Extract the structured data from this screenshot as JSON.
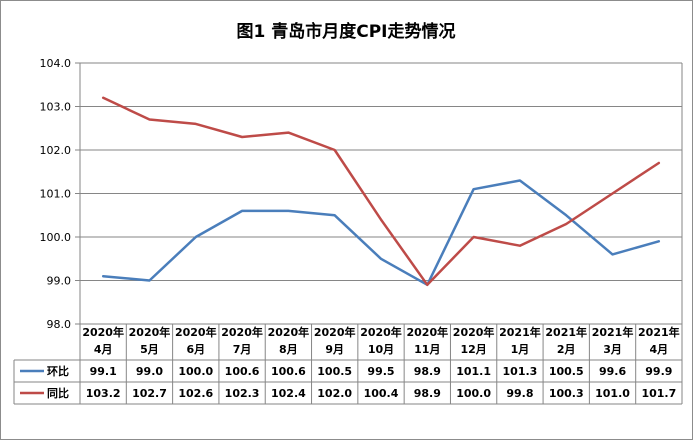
{
  "chart_data": {
    "type": "line",
    "title": "图1   青岛市月度CPI走势情况",
    "ylim": [
      98.0,
      104.0
    ],
    "yticks": [
      "98.0",
      "99.0",
      "100.0",
      "101.0",
      "102.0",
      "103.0",
      "104.0"
    ],
    "grid": true,
    "legend": "table-left",
    "categories": [
      [
        "2020年",
        "4月"
      ],
      [
        "2020年",
        "5月"
      ],
      [
        "2020年",
        "6月"
      ],
      [
        "2020年",
        "7月"
      ],
      [
        "2020年",
        "8月"
      ],
      [
        "2020年",
        "9月"
      ],
      [
        "2020年",
        "10月"
      ],
      [
        "2020年",
        "11月"
      ],
      [
        "2020年",
        "12月"
      ],
      [
        "2021年",
        "1月"
      ],
      [
        "2021年",
        "2月"
      ],
      [
        "2021年",
        "3月"
      ],
      [
        "2021年",
        "4月"
      ]
    ],
    "series": [
      {
        "name": "环比",
        "color": "#4a7ebb",
        "values": [
          99.1,
          99.0,
          100.0,
          100.6,
          100.6,
          100.5,
          99.5,
          98.9,
          101.1,
          101.3,
          100.5,
          99.6,
          99.9
        ],
        "labels": [
          "99.1",
          "99.0",
          "100.0",
          "100.6",
          "100.6",
          "100.5",
          "99.5",
          "98.9",
          "101.1",
          "101.3",
          "100.5",
          "99.6",
          "99.9"
        ]
      },
      {
        "name": "同比",
        "color": "#be4b48",
        "values": [
          103.2,
          102.7,
          102.6,
          102.3,
          102.4,
          102.0,
          100.4,
          98.9,
          100.0,
          99.8,
          100.3,
          101.0,
          101.7
        ],
        "labels": [
          "103.2",
          "102.7",
          "102.6",
          "102.3",
          "102.4",
          "102.0",
          "100.4",
          "98.9",
          "100.0",
          "99.8",
          "100.3",
          "101.0",
          "101.7"
        ]
      }
    ]
  }
}
